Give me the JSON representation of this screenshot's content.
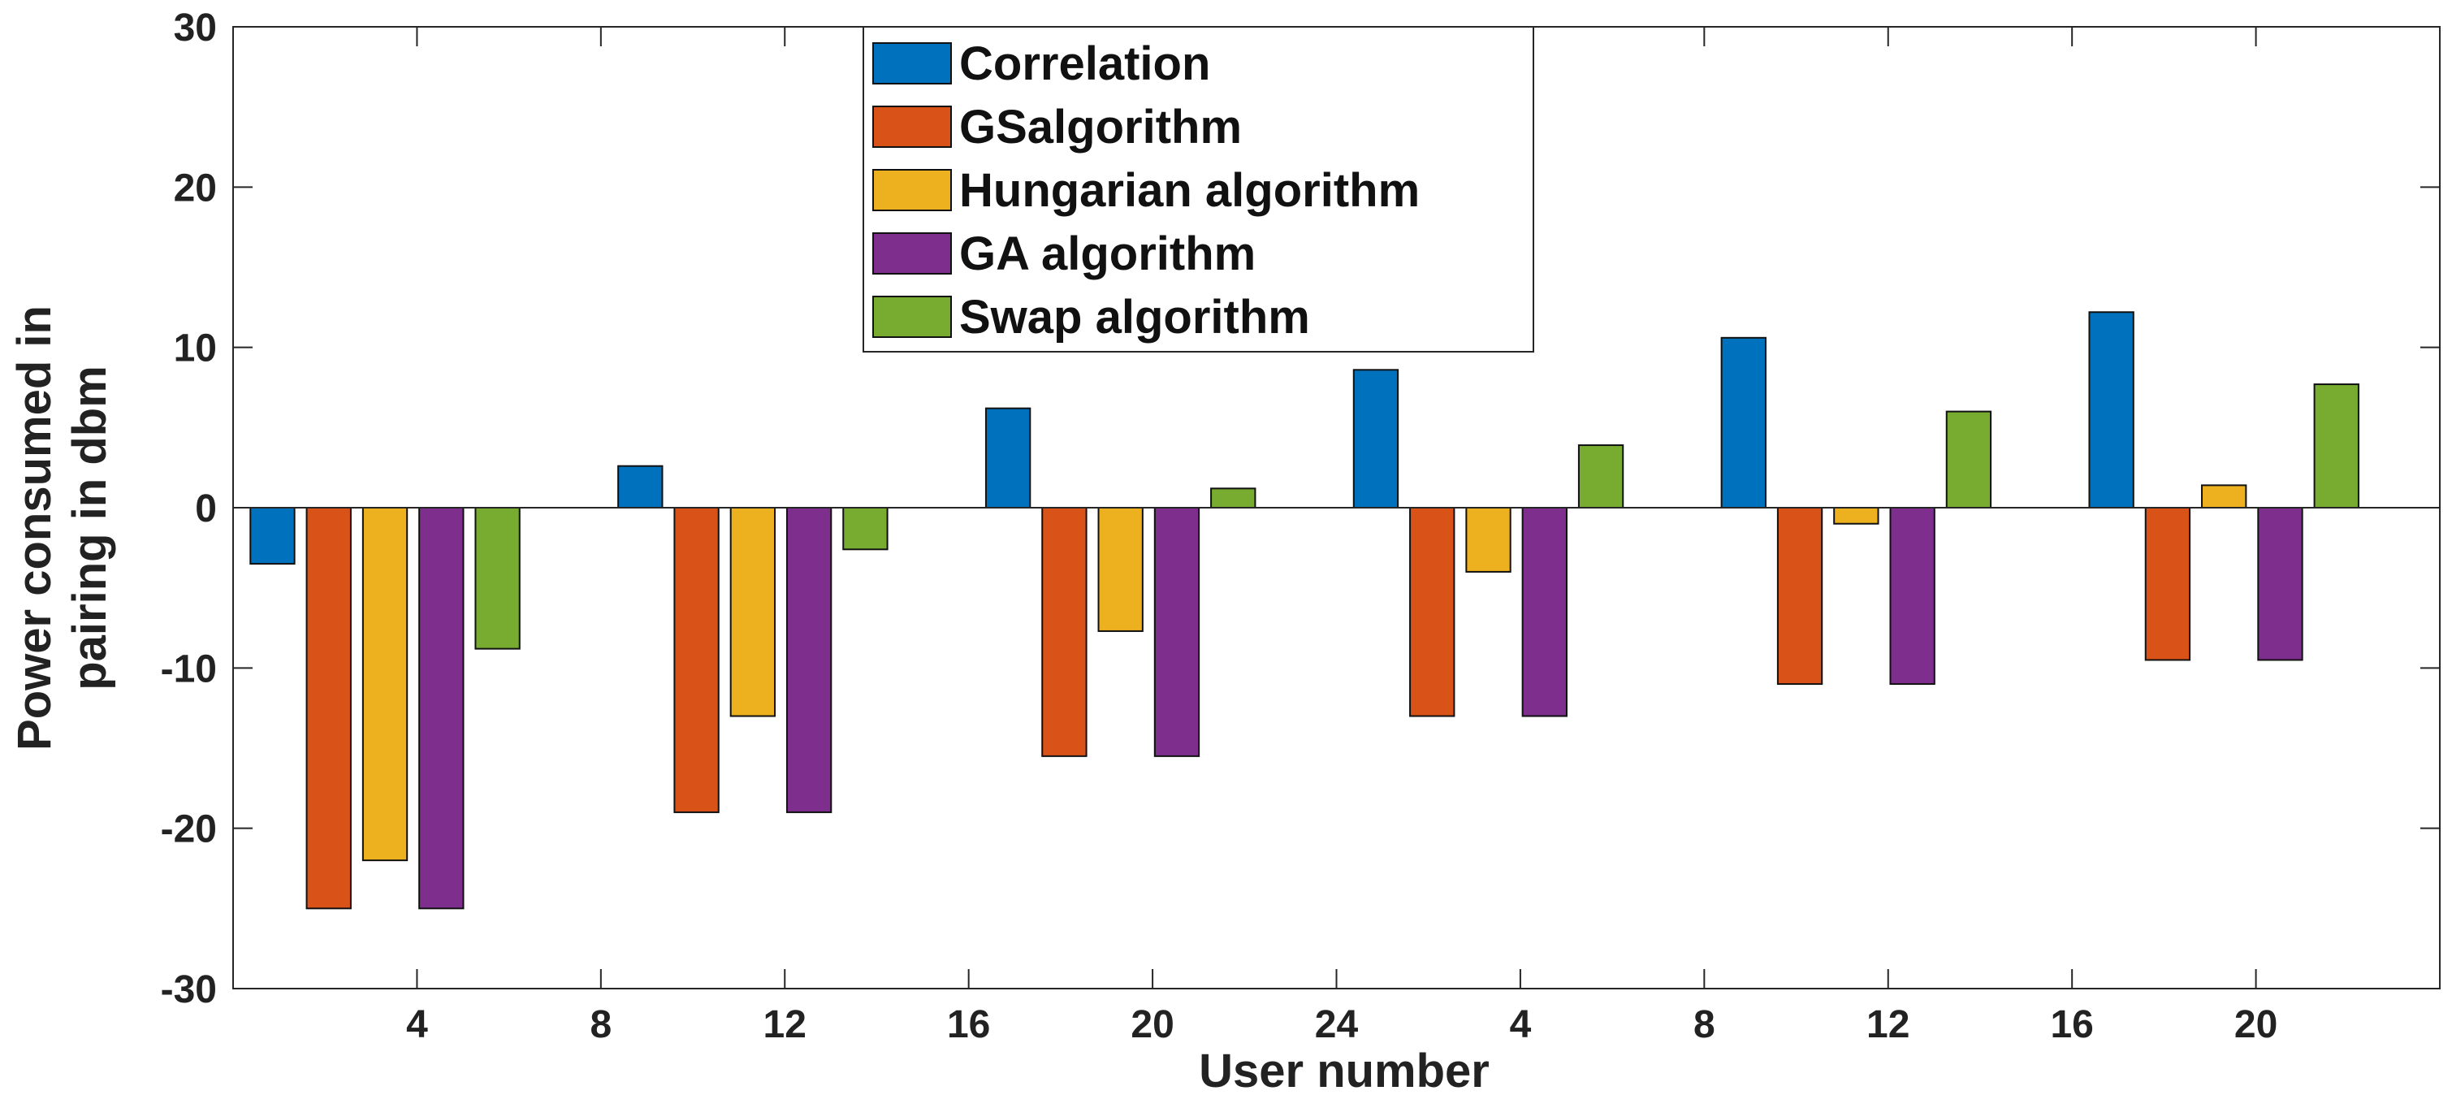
{
  "chart_data": {
    "type": "bar",
    "title": "",
    "xlabel": "User number",
    "ylabel": [
      "Power consumed in",
      "pairing in dbm"
    ],
    "ylim": [
      -30,
      30
    ],
    "yticks": [
      -30,
      -20,
      -10,
      0,
      10,
      20,
      30
    ],
    "xticks": [
      "4",
      "8",
      "12",
      "16",
      "20",
      "24",
      "4",
      "8",
      "12",
      "16",
      "20"
    ],
    "categories": [
      "4",
      "12",
      "20",
      "4",
      "12",
      "20"
    ],
    "series": [
      {
        "name": "Correlation",
        "color": "#0072BD",
        "values": [
          -3.5,
          2.6,
          6.2,
          8.6,
          10.6,
          12.2
        ]
      },
      {
        "name": "GSalgorithm",
        "color": "#D95319",
        "values": [
          -25,
          -19,
          -15.5,
          -13,
          -11,
          -9.5
        ]
      },
      {
        "name": "Hungarian algorithm",
        "color": "#EDB120",
        "values": [
          -22,
          -13,
          -7.7,
          -4,
          -1,
          1.4
        ]
      },
      {
        "name": "GA algorithm",
        "color": "#7E2F8E",
        "values": [
          -25,
          -19,
          -15.5,
          -13,
          -11,
          -9.5
        ]
      },
      {
        "name": "Swap algorithm",
        "color": "#77AC30",
        "values": [
          -8.8,
          -2.6,
          1.2,
          3.9,
          6,
          7.7
        ]
      }
    ],
    "legend_position": "top-center",
    "grid": false
  }
}
